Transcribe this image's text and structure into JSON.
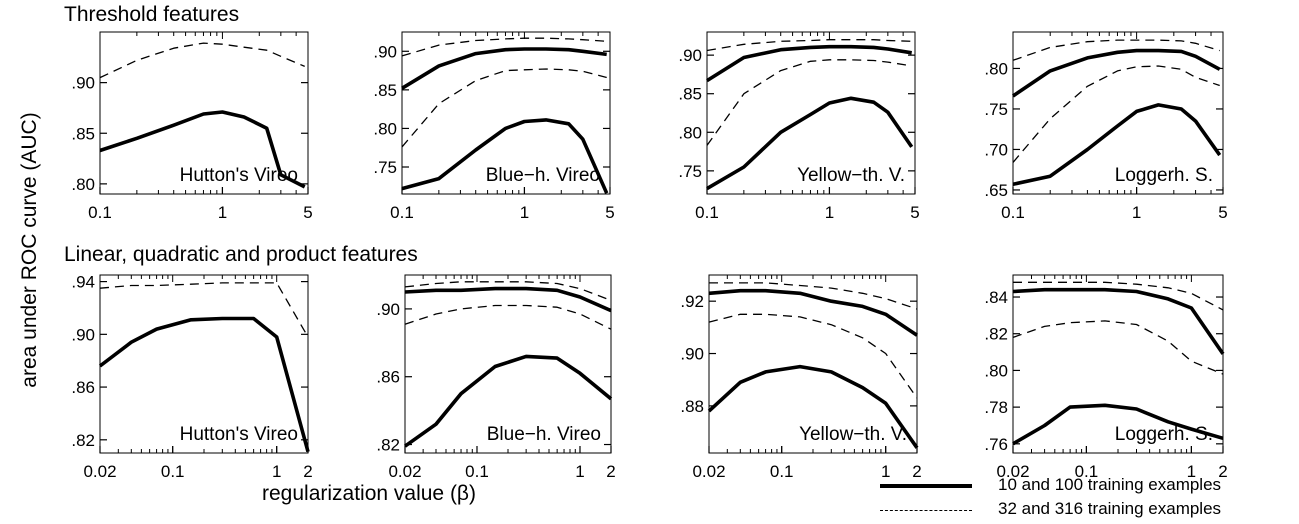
{
  "ylabel": "area under ROC curve (AUC)",
  "xlabel": "regularization value (β)",
  "row_titles": [
    "Threshold features",
    "Linear, quadratic and product features"
  ],
  "legend": [
    {
      "label": "10 and 100 training examples",
      "style": "solid"
    },
    {
      "label": "32 and 316 training examples",
      "style": "dashed"
    }
  ],
  "chart_data": [
    {
      "type": "line",
      "panel_label": "Hutton's Vireo",
      "xscale": "log",
      "xlim": [
        0.1,
        5
      ],
      "xticks": [
        0.1,
        1,
        5
      ],
      "xtick_labels": [
        "0.1",
        "1",
        "5"
      ],
      "ylim": [
        0.79,
        0.95
      ],
      "yticks": [
        0.8,
        0.85,
        0.9
      ],
      "ytick_labels": [
        ".80",
        ".85",
        ".90"
      ],
      "series": [
        {
          "style": "solid",
          "x": [
            0.1,
            0.2,
            0.4,
            0.7,
            1,
            1.5,
            2.3,
            3,
            4.7
          ],
          "y": [
            0.833,
            0.845,
            0.858,
            0.869,
            0.871,
            0.866,
            0.855,
            0.809,
            0.797
          ]
        },
        {
          "style": "dashed",
          "x": [
            0.1,
            0.2,
            0.4,
            0.7,
            1,
            1.5,
            2.3,
            3,
            4.7
          ],
          "y": [
            0.905,
            0.922,
            0.934,
            0.939,
            0.938,
            0.935,
            0.932,
            0.926,
            0.916
          ]
        }
      ]
    },
    {
      "type": "line",
      "panel_label": "Blue−h. Vireo",
      "xscale": "log",
      "xlim": [
        0.1,
        5
      ],
      "xticks": [
        0.1,
        1,
        5
      ],
      "xtick_labels": [
        "0.1",
        "1",
        "5"
      ],
      "ylim": [
        0.715,
        0.925
      ],
      "yticks": [
        0.75,
        0.8,
        0.85,
        0.9
      ],
      "ytick_labels": [
        ".75",
        ".80",
        ".85",
        ".90"
      ],
      "series": [
        {
          "style": "solid",
          "x": [
            0.1,
            0.2,
            0.4,
            0.7,
            1,
            1.5,
            2.3,
            3,
            4.7
          ],
          "y": [
            0.722,
            0.735,
            0.772,
            0.8,
            0.809,
            0.811,
            0.806,
            0.786,
            0.716
          ]
        },
        {
          "style": "solid",
          "x": [
            0.1,
            0.2,
            0.4,
            0.7,
            1,
            1.5,
            2.3,
            3,
            4.7
          ],
          "y": [
            0.852,
            0.881,
            0.897,
            0.902,
            0.903,
            0.903,
            0.902,
            0.9,
            0.896
          ]
        },
        {
          "style": "dashed",
          "x": [
            0.1,
            0.2,
            0.4,
            0.7,
            1,
            1.5,
            2.3,
            3,
            4.7
          ],
          "y": [
            0.776,
            0.832,
            0.862,
            0.875,
            0.876,
            0.877,
            0.876,
            0.874,
            0.866
          ]
        },
        {
          "style": "dashed",
          "x": [
            0.1,
            0.2,
            0.4,
            0.7,
            1,
            1.5,
            2.3,
            3,
            4.7
          ],
          "y": [
            0.894,
            0.908,
            0.914,
            0.916,
            0.917,
            0.917,
            0.916,
            0.915,
            0.913
          ]
        }
      ]
    },
    {
      "type": "line",
      "panel_label": "Yellow−th. V.",
      "xscale": "log",
      "xlim": [
        0.1,
        5
      ],
      "xticks": [
        0.1,
        1,
        5
      ],
      "xtick_labels": [
        "0.1",
        "1",
        "5"
      ],
      "ylim": [
        0.72,
        0.93
      ],
      "yticks": [
        0.75,
        0.8,
        0.85,
        0.9
      ],
      "ytick_labels": [
        ".75",
        ".80",
        ".85",
        ".90"
      ],
      "series": [
        {
          "style": "solid",
          "x": [
            0.1,
            0.2,
            0.4,
            0.7,
            1,
            1.5,
            2.3,
            3,
            4.7
          ],
          "y": [
            0.727,
            0.755,
            0.8,
            0.823,
            0.838,
            0.844,
            0.839,
            0.826,
            0.781
          ]
        },
        {
          "style": "solid",
          "x": [
            0.1,
            0.2,
            0.4,
            0.7,
            1,
            1.5,
            2.3,
            3,
            4.7
          ],
          "y": [
            0.867,
            0.897,
            0.907,
            0.91,
            0.911,
            0.911,
            0.91,
            0.908,
            0.903
          ]
        },
        {
          "style": "dashed",
          "x": [
            0.1,
            0.2,
            0.4,
            0.7,
            1,
            1.5,
            2.3,
            3,
            4.7
          ],
          "y": [
            0.783,
            0.85,
            0.88,
            0.892,
            0.894,
            0.894,
            0.893,
            0.891,
            0.886
          ]
        },
        {
          "style": "dashed",
          "x": [
            0.1,
            0.2,
            0.4,
            0.7,
            1,
            1.5,
            2.3,
            3,
            4.7
          ],
          "y": [
            0.906,
            0.914,
            0.918,
            0.919,
            0.92,
            0.92,
            0.92,
            0.919,
            0.918
          ]
        }
      ]
    },
    {
      "type": "line",
      "panel_label": "Loggerh. S.",
      "xscale": "log",
      "xlim": [
        0.1,
        5
      ],
      "xticks": [
        0.1,
        1,
        5
      ],
      "xtick_labels": [
        "0.1",
        "1",
        "5"
      ],
      "ylim": [
        0.645,
        0.845
      ],
      "yticks": [
        0.65,
        0.7,
        0.75,
        0.8
      ],
      "ytick_labels": [
        ".65",
        ".70",
        ".75",
        ".80"
      ],
      "series": [
        {
          "style": "solid",
          "x": [
            0.1,
            0.2,
            0.4,
            0.7,
            1,
            1.5,
            2.3,
            3,
            4.7
          ],
          "y": [
            0.657,
            0.667,
            0.7,
            0.729,
            0.747,
            0.755,
            0.75,
            0.735,
            0.693
          ]
        },
        {
          "style": "solid",
          "x": [
            0.1,
            0.2,
            0.4,
            0.7,
            1,
            1.5,
            2.3,
            3,
            4.7
          ],
          "y": [
            0.766,
            0.797,
            0.813,
            0.82,
            0.822,
            0.822,
            0.821,
            0.815,
            0.799
          ]
        },
        {
          "style": "dashed",
          "x": [
            0.1,
            0.2,
            0.4,
            0.7,
            1,
            1.5,
            2.3,
            3,
            4.7
          ],
          "y": [
            0.684,
            0.738,
            0.778,
            0.797,
            0.802,
            0.803,
            0.799,
            0.789,
            0.779
          ]
        },
        {
          "style": "dashed",
          "x": [
            0.1,
            0.2,
            0.4,
            0.7,
            1,
            1.5,
            2.3,
            3,
            4.7
          ],
          "y": [
            0.81,
            0.826,
            0.833,
            0.835,
            0.835,
            0.835,
            0.834,
            0.831,
            0.822
          ]
        }
      ]
    },
    {
      "type": "line",
      "panel_label": "Hutton's Vireo",
      "xscale": "log",
      "xlim": [
        0.02,
        2
      ],
      "xticks": [
        0.02,
        0.1,
        1,
        2
      ],
      "xtick_labels": [
        "0.02",
        "0.1",
        "1",
        "2"
      ],
      "ylim": [
        0.81,
        0.945
      ],
      "yticks": [
        0.82,
        0.86,
        0.9,
        0.94
      ],
      "ytick_labels": [
        ".82",
        ".86",
        ".90",
        ".94"
      ],
      "series": [
        {
          "style": "solid",
          "x": [
            0.02,
            0.04,
            0.07,
            0.15,
            0.3,
            0.6,
            1,
            2
          ],
          "y": [
            0.876,
            0.894,
            0.904,
            0.911,
            0.912,
            0.912,
            0.898,
            0.811
          ]
        },
        {
          "style": "dashed",
          "x": [
            0.02,
            0.04,
            0.07,
            0.15,
            0.3,
            0.6,
            1,
            2
          ],
          "y": [
            0.935,
            0.937,
            0.937,
            0.938,
            0.939,
            0.939,
            0.939,
            0.898
          ]
        }
      ]
    },
    {
      "type": "line",
      "panel_label": "Blue−h. Vireo",
      "xscale": "log",
      "xlim": [
        0.02,
        2
      ],
      "xticks": [
        0.02,
        0.1,
        1,
        2
      ],
      "xtick_labels": [
        "0.02",
        "0.1",
        "1",
        "2"
      ],
      "ylim": [
        0.815,
        0.92
      ],
      "yticks": [
        0.82,
        0.86,
        0.9
      ],
      "ytick_labels": [
        ".82",
        ".86",
        ".90"
      ],
      "series": [
        {
          "style": "solid",
          "x": [
            0.02,
            0.04,
            0.07,
            0.15,
            0.3,
            0.6,
            1,
            2
          ],
          "y": [
            0.819,
            0.832,
            0.85,
            0.866,
            0.872,
            0.871,
            0.862,
            0.847
          ]
        },
        {
          "style": "solid",
          "x": [
            0.02,
            0.04,
            0.07,
            0.15,
            0.3,
            0.6,
            1,
            2
          ],
          "y": [
            0.91,
            0.911,
            0.911,
            0.912,
            0.912,
            0.911,
            0.907,
            0.899
          ]
        },
        {
          "style": "dashed",
          "x": [
            0.02,
            0.04,
            0.07,
            0.15,
            0.3,
            0.6,
            1,
            2
          ],
          "y": [
            0.891,
            0.897,
            0.9,
            0.902,
            0.902,
            0.901,
            0.897,
            0.888
          ]
        },
        {
          "style": "dashed",
          "x": [
            0.02,
            0.04,
            0.07,
            0.15,
            0.3,
            0.6,
            1,
            2
          ],
          "y": [
            0.913,
            0.915,
            0.916,
            0.916,
            0.916,
            0.915,
            0.912,
            0.905
          ]
        }
      ]
    },
    {
      "type": "line",
      "panel_label": "Yellow−th. V.",
      "xscale": "log",
      "xlim": [
        0.02,
        2
      ],
      "xticks": [
        0.02,
        0.1,
        1,
        2
      ],
      "xtick_labels": [
        "0.02",
        "0.1",
        "1",
        "2"
      ],
      "ylim": [
        0.862,
        0.93
      ],
      "yticks": [
        0.88,
        0.9,
        0.92
      ],
      "ytick_labels": [
        ".88",
        ".90",
        ".92"
      ],
      "series": [
        {
          "style": "solid",
          "x": [
            0.02,
            0.04,
            0.07,
            0.15,
            0.3,
            0.6,
            1,
            2
          ],
          "y": [
            0.878,
            0.889,
            0.893,
            0.895,
            0.893,
            0.887,
            0.881,
            0.864
          ]
        },
        {
          "style": "solid",
          "x": [
            0.02,
            0.04,
            0.07,
            0.15,
            0.3,
            0.6,
            1,
            2
          ],
          "y": [
            0.923,
            0.924,
            0.924,
            0.923,
            0.92,
            0.918,
            0.915,
            0.907
          ]
        },
        {
          "style": "dashed",
          "x": [
            0.02,
            0.04,
            0.07,
            0.15,
            0.3,
            0.6,
            1,
            2
          ],
          "y": [
            0.912,
            0.915,
            0.915,
            0.914,
            0.911,
            0.906,
            0.9,
            0.883
          ]
        },
        {
          "style": "dashed",
          "x": [
            0.02,
            0.04,
            0.07,
            0.15,
            0.3,
            0.6,
            1,
            2
          ],
          "y": [
            0.927,
            0.927,
            0.927,
            0.926,
            0.925,
            0.923,
            0.921,
            0.917
          ]
        }
      ]
    },
    {
      "type": "line",
      "panel_label": "Loggerh. S.",
      "xscale": "log",
      "xlim": [
        0.02,
        2
      ],
      "xticks": [
        0.02,
        0.1,
        1,
        2
      ],
      "xtick_labels": [
        "0.02",
        "0.1",
        "1",
        "2"
      ],
      "ylim": [
        0.755,
        0.852
      ],
      "yticks": [
        0.76,
        0.78,
        0.8,
        0.82,
        0.84
      ],
      "ytick_labels": [
        ".76",
        ".78",
        ".80",
        ".82",
        ".84"
      ],
      "series": [
        {
          "style": "solid",
          "x": [
            0.02,
            0.04,
            0.07,
            0.15,
            0.3,
            0.6,
            1,
            2
          ],
          "y": [
            0.76,
            0.77,
            0.78,
            0.781,
            0.779,
            0.772,
            0.768,
            0.763
          ]
        },
        {
          "style": "solid",
          "x": [
            0.02,
            0.04,
            0.07,
            0.15,
            0.3,
            0.6,
            1,
            2
          ],
          "y": [
            0.843,
            0.844,
            0.844,
            0.844,
            0.843,
            0.839,
            0.834,
            0.809
          ]
        },
        {
          "style": "dashed",
          "x": [
            0.02,
            0.04,
            0.07,
            0.15,
            0.3,
            0.6,
            1,
            2
          ],
          "y": [
            0.818,
            0.824,
            0.826,
            0.827,
            0.825,
            0.816,
            0.805,
            0.798
          ]
        },
        {
          "style": "dashed",
          "x": [
            0.02,
            0.04,
            0.07,
            0.15,
            0.3,
            0.6,
            1,
            2
          ],
          "y": [
            0.848,
            0.848,
            0.848,
            0.848,
            0.847,
            0.845,
            0.842,
            0.833
          ]
        }
      ]
    }
  ]
}
